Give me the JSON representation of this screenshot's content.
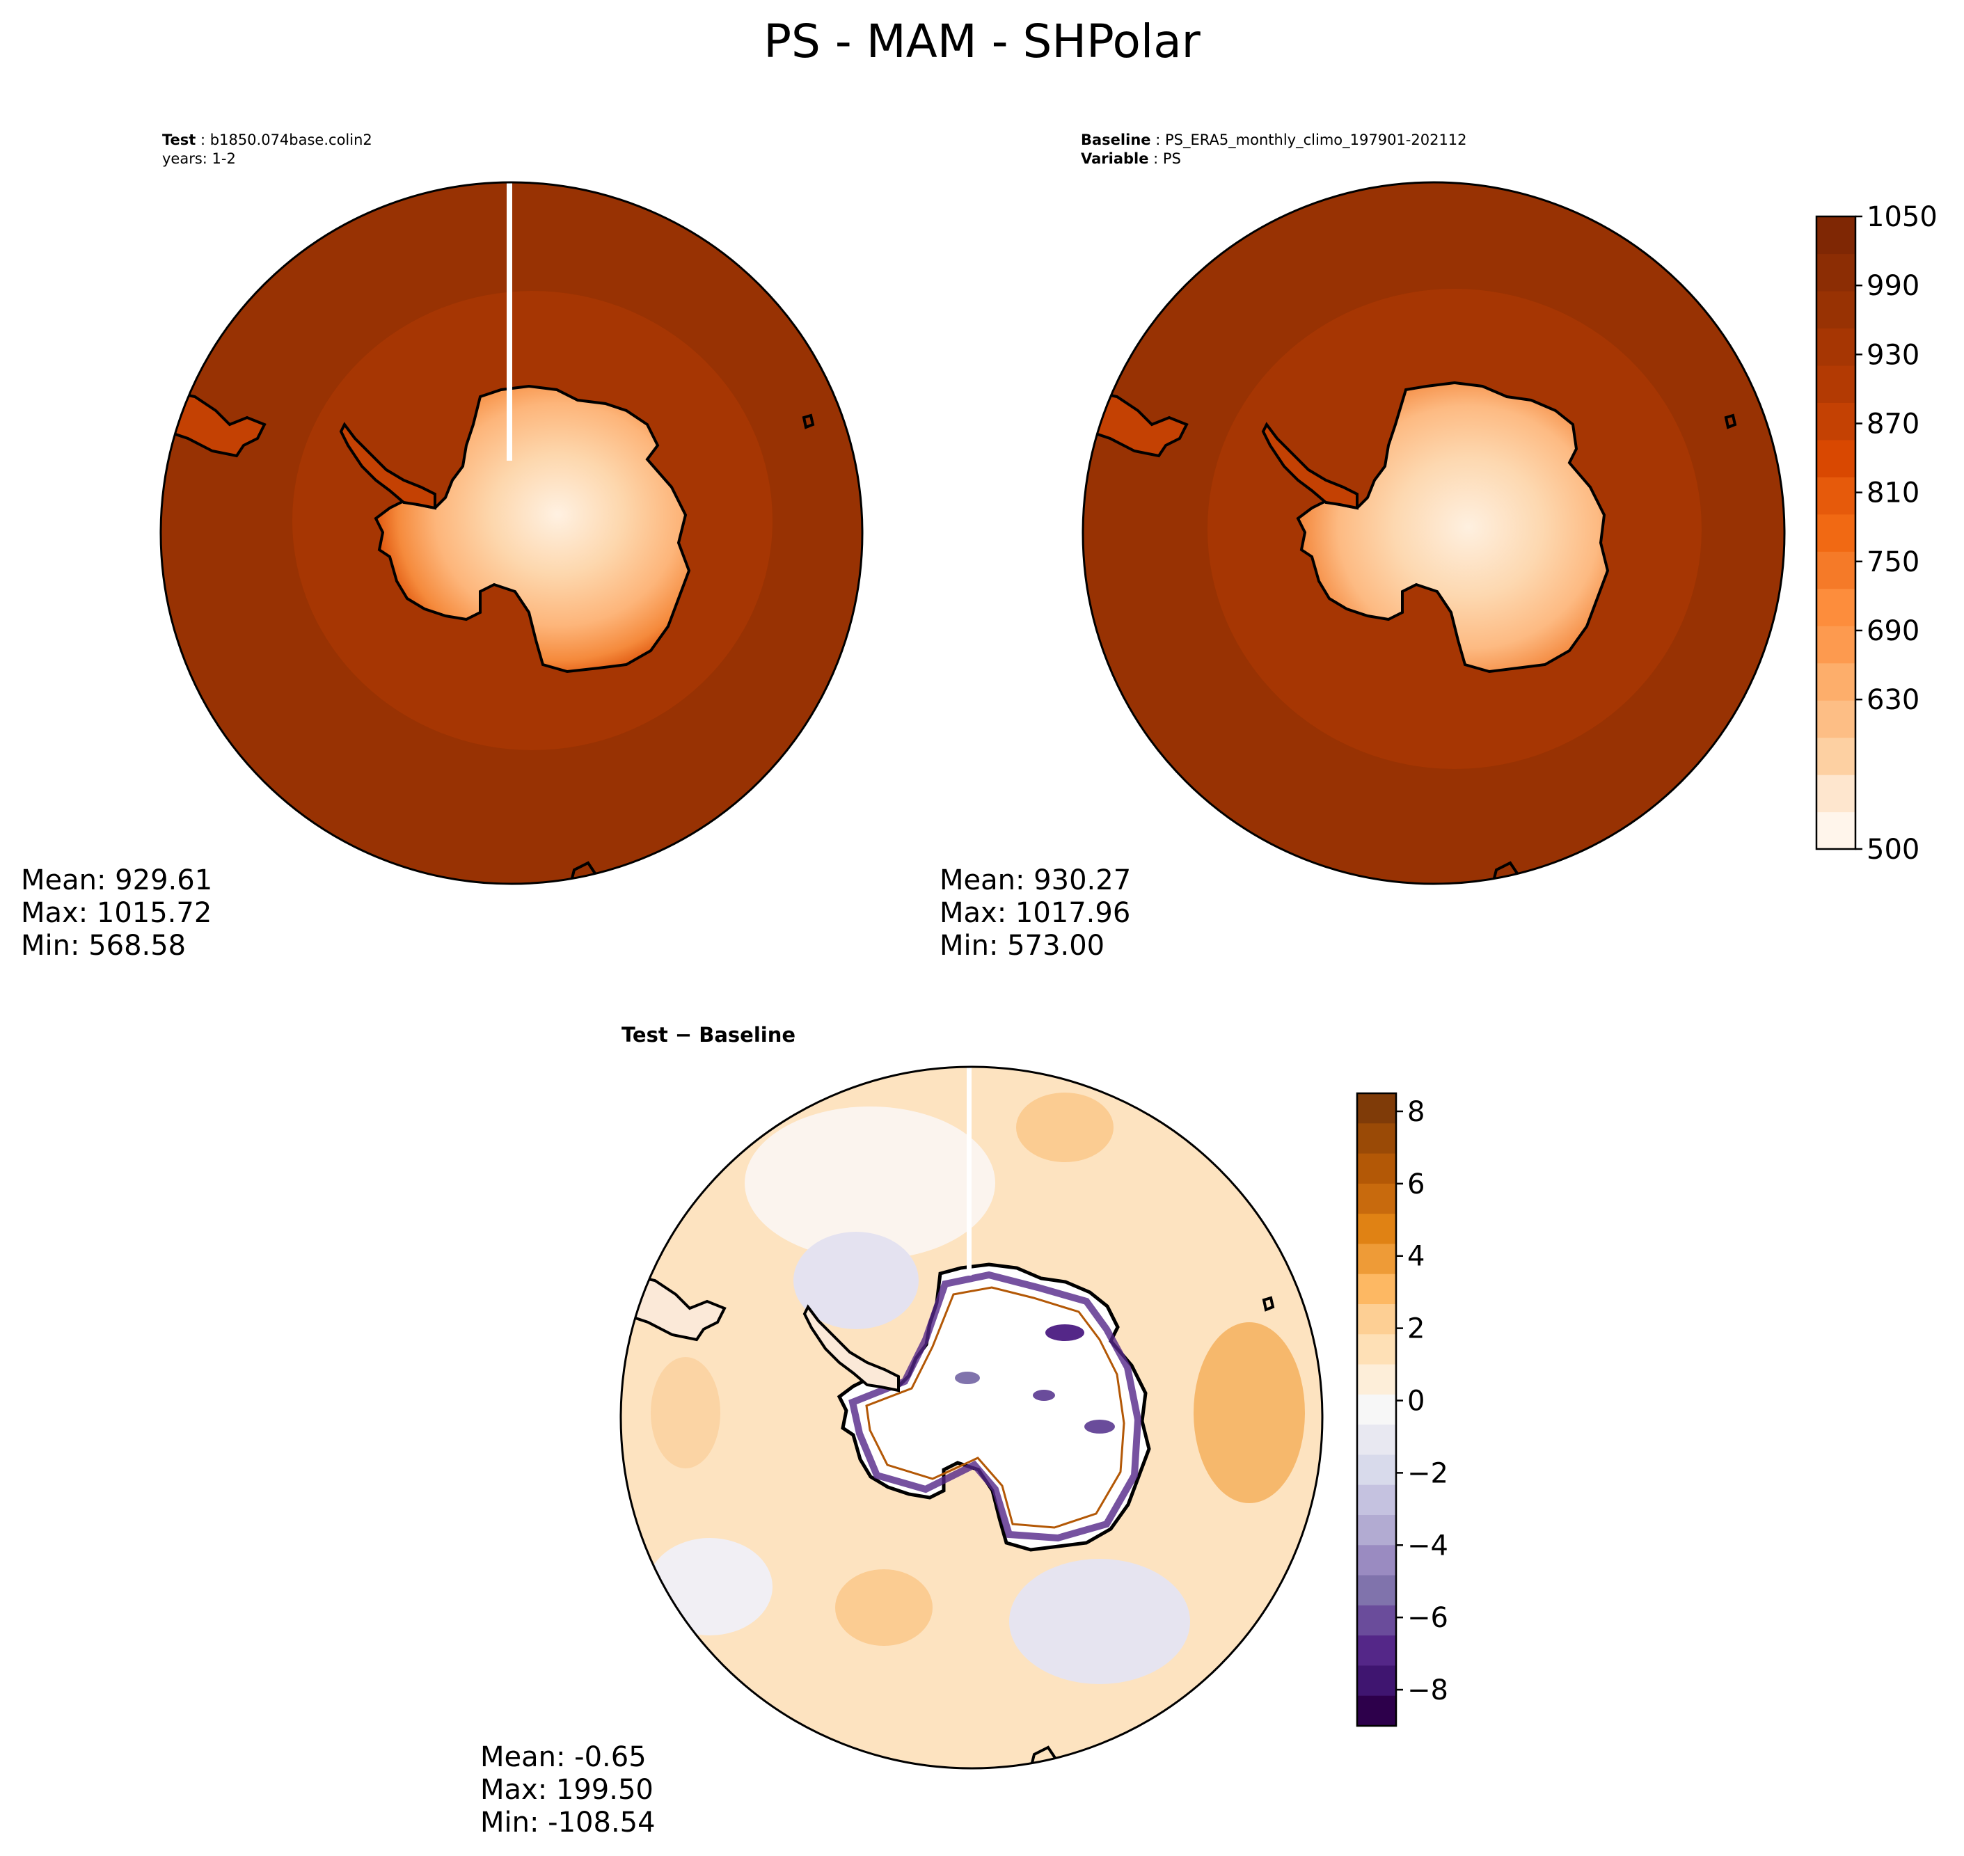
{
  "title": "PS - MAM - SHPolar",
  "panels": [
    {
      "id": "test",
      "header_lines": [
        {
          "key": "Test",
          "value": "b1850.074base.colin2"
        },
        {
          "key": "",
          "value": "years: 1-2"
        }
      ],
      "stats": {
        "mean": "Mean: 929.61",
        "max": "Max: 1015.72",
        "min": "Min: 568.58"
      }
    },
    {
      "id": "baseline",
      "header_lines": [
        {
          "key": "Baseline",
          "value": "PS_ERA5_monthly_climo_197901-202112"
        },
        {
          "key": "Variable",
          "value": "PS"
        }
      ],
      "stats": {
        "mean": "Mean: 930.27",
        "max": "Max: 1017.96",
        "min": "Min: 573.00"
      }
    },
    {
      "id": "diff",
      "header": "Test − Baseline",
      "stats": {
        "mean": "Mean: -0.65",
        "max": "Max: 199.50",
        "min": "Min: -108.54"
      }
    }
  ],
  "colorbars": {
    "abs": {
      "ticks": [
        "500",
        "630",
        "690",
        "750",
        "810",
        "870",
        "930",
        "990",
        "1050"
      ],
      "colors": [
        "#fff5eb",
        "#fee6ce",
        "#fdd0a2",
        "#fdbe85",
        "#fdae6b",
        "#fd9a4f",
        "#fd8d3c",
        "#f57a28",
        "#f16913",
        "#e65a0b",
        "#d94801",
        "#c44103",
        "#b33a03",
        "#a63603",
        "#983203",
        "#8c2d04",
        "#7f2704"
      ]
    },
    "diff": {
      "ticks": [
        "8",
        "6",
        "4",
        "2",
        "0",
        "−2",
        "−4",
        "−6",
        "−8"
      ],
      "colors_top_to_bottom": [
        "#7f3b08",
        "#9a4a06",
        "#b35806",
        "#c86a0d",
        "#e08214",
        "#ee9b37",
        "#fdb863",
        "#fdcf94",
        "#fee0b6",
        "#fdeed9",
        "#f7f7f7",
        "#e8e8f1",
        "#d8daeb",
        "#c5c2e0",
        "#b2abd2",
        "#9a8bc1",
        "#8073ac",
        "#6a4c9b",
        "#542788",
        "#3f1570",
        "#2d004b"
      ]
    }
  },
  "map_colors": {
    "ocean": "#983203",
    "ring_inner": "#a63603",
    "land_border": "#000000",
    "diff_ocean": "#fde3c0"
  },
  "chart_data": [
    {
      "type": "heatmap",
      "panel": "Test",
      "title": "Test: b1850.074base.colin2 years: 1-2",
      "colorbar_range": [
        500,
        1050
      ],
      "stats": {
        "mean": 929.61,
        "max": 1015.72,
        "min": 568.58
      }
    },
    {
      "type": "heatmap",
      "panel": "Baseline",
      "title": "Baseline: PS_ERA5_monthly_climo_197901-202112 Variable: PS",
      "colorbar_range": [
        500,
        1050
      ],
      "stats": {
        "mean": 930.27,
        "max": 1017.96,
        "min": 573.0
      }
    },
    {
      "type": "heatmap",
      "panel": "Test − Baseline",
      "colorbar_range": [
        -9,
        8.5
      ],
      "stats": {
        "mean": -0.65,
        "max": 199.5,
        "min": -108.54
      }
    }
  ]
}
